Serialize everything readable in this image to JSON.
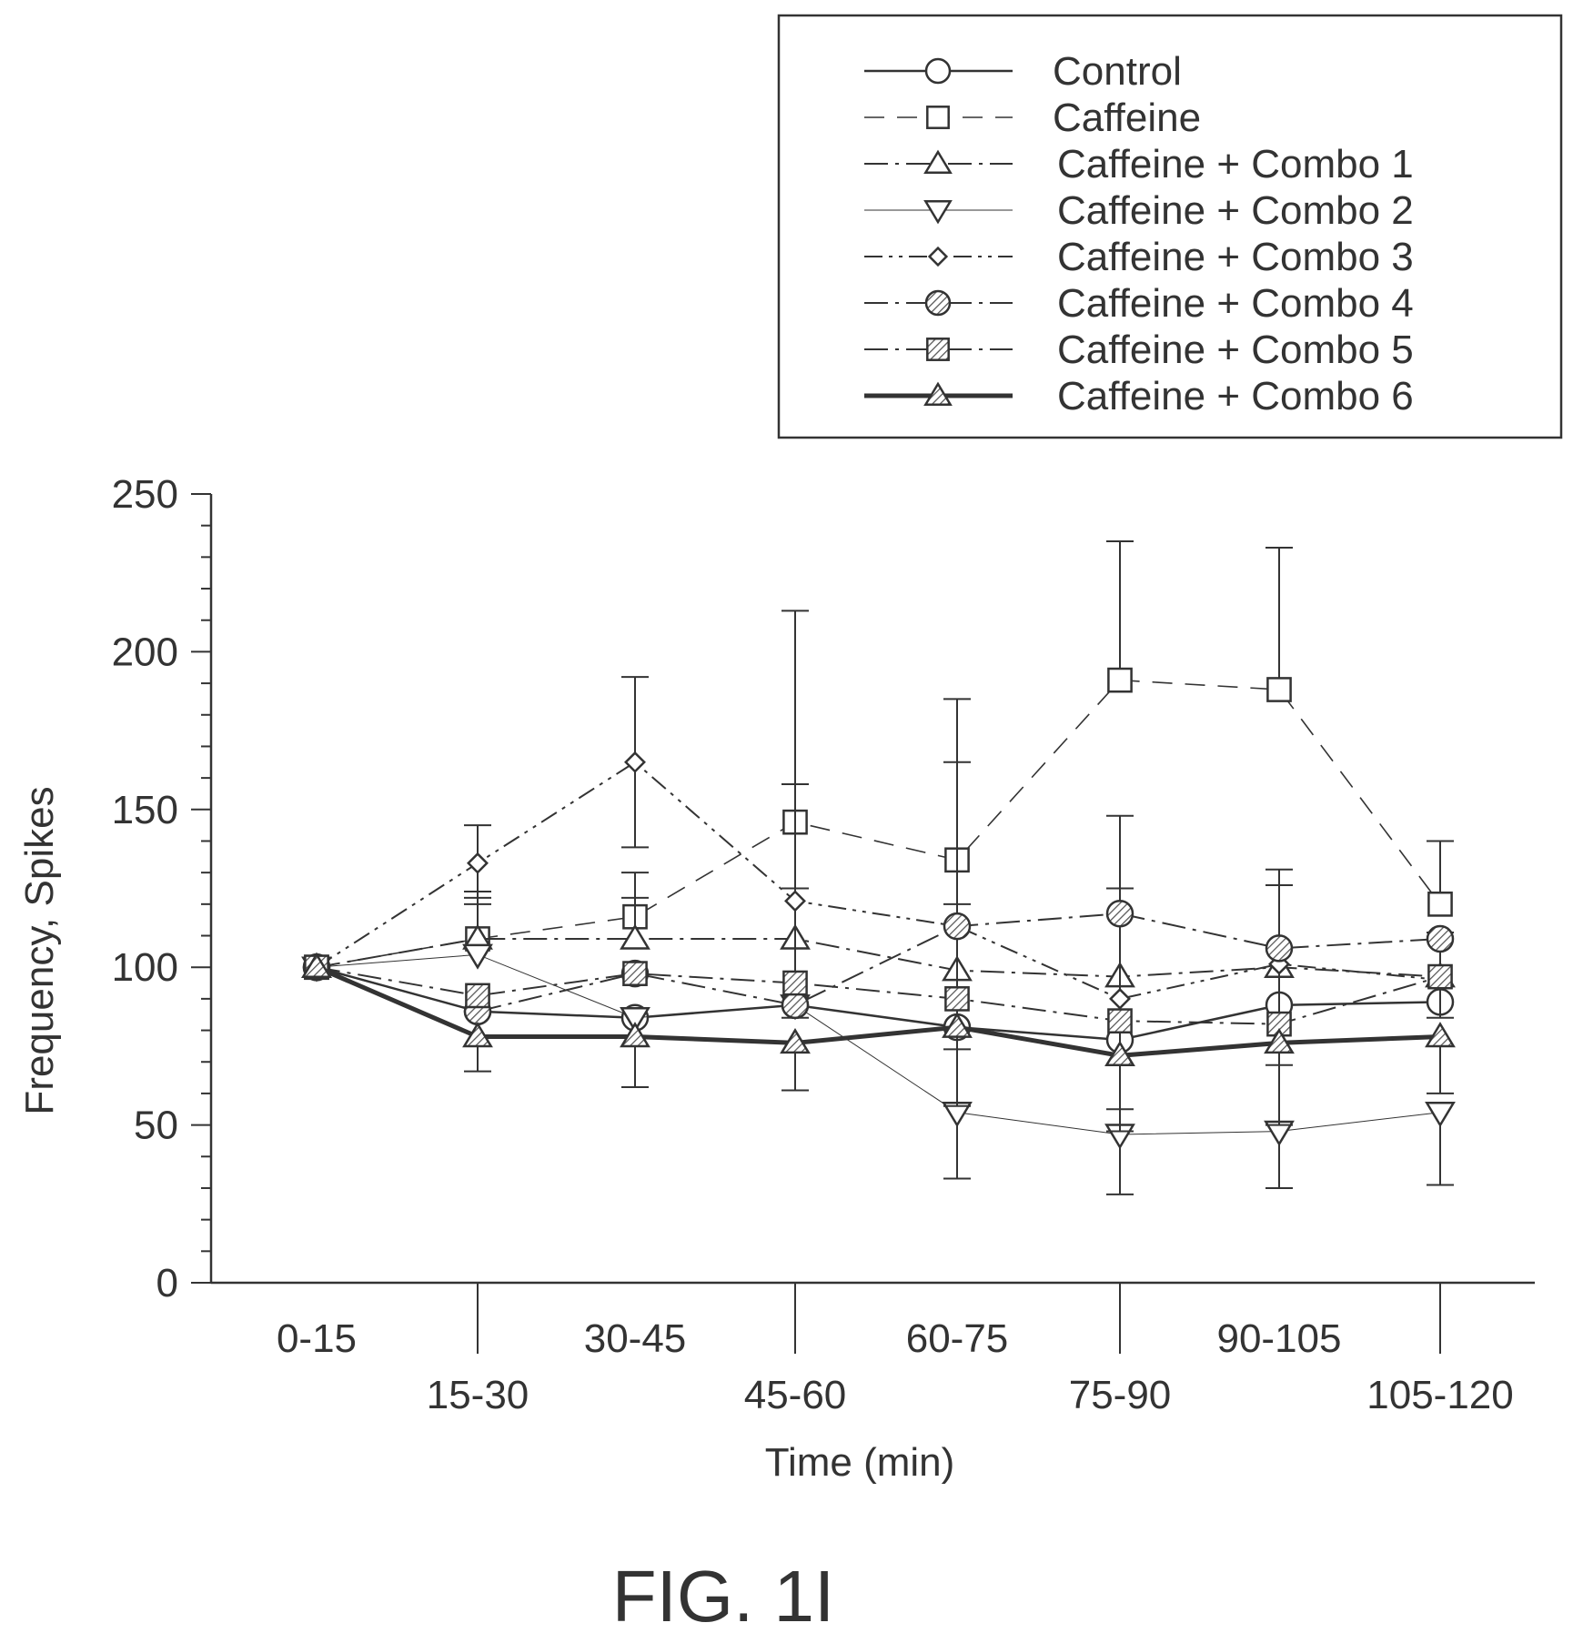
{
  "chart_data": {
    "type": "line",
    "xlabel": "Time (min)",
    "ylabel": "Frequency, Spikes",
    "ylim": [
      0,
      250
    ],
    "yticks": [
      0,
      50,
      100,
      150,
      200,
      250
    ],
    "categories": [
      "0-15",
      "15-30",
      "30-45",
      "45-60",
      "60-75",
      "75-90",
      "90-105",
      "105-120"
    ],
    "legend_position": "top-right",
    "grid": false,
    "series": [
      {
        "name": "Control",
        "marker": "circle",
        "fill": "white",
        "dash": "solid",
        "stroke_width": 2.5,
        "values": [
          100,
          86,
          84,
          88,
          81,
          77,
          88,
          89
        ],
        "err_hi": [
          null,
          null,
          null,
          null,
          null,
          null,
          null,
          null
        ]
      },
      {
        "name": "Caffeine",
        "marker": "square",
        "fill": "white",
        "dash": "long-dash",
        "stroke_width": 1.6,
        "values": [
          100,
          109,
          116,
          146,
          134,
          191,
          188,
          120
        ],
        "err_hi": [
          null,
          124,
          130,
          213,
          185,
          235,
          233,
          140
        ]
      },
      {
        "name": "Caffeine + Combo 1",
        "marker": "triangle-up",
        "fill": "white",
        "dash": "dash-dot",
        "stroke_width": 2,
        "values": [
          100,
          109,
          109,
          109,
          99,
          97,
          100,
          97
        ],
        "err_hi": [
          null,
          122,
          122,
          125,
          120,
          125,
          126,
          111
        ]
      },
      {
        "name": "Caffeine + Combo 2",
        "marker": "triangle-down",
        "fill": "white",
        "dash": "solid",
        "stroke_width": 1,
        "values": [
          100,
          104,
          84,
          88,
          54,
          47,
          48,
          54
        ],
        "err_hi": [
          null,
          null,
          null,
          null,
          null,
          null,
          null,
          null
        ],
        "err_lo": [
          null,
          null,
          null,
          null,
          33,
          28,
          30,
          31
        ]
      },
      {
        "name": "Caffeine + Combo 3",
        "marker": "diamond",
        "fill": "white",
        "dash": "dash-dot-dot",
        "stroke_width": 2,
        "values": [
          100,
          133,
          165,
          121,
          113,
          90,
          101,
          96
        ],
        "err_hi": [
          null,
          145,
          192,
          158,
          165,
          148,
          131,
          111
        ],
        "err_lo": [
          null,
          120,
          138,
          84,
          74,
          55,
          69,
          84
        ]
      },
      {
        "name": "Caffeine + Combo 4",
        "marker": "circle",
        "fill": "hatch",
        "dash": "dash-dot",
        "stroke_width": 2,
        "values": [
          100,
          86,
          98,
          88,
          113,
          117,
          106,
          109
        ],
        "err_hi": [
          null,
          null,
          null,
          null,
          null,
          null,
          null,
          null
        ]
      },
      {
        "name": "Caffeine + Combo 5",
        "marker": "square",
        "fill": "hatch",
        "dash": "dash-dot",
        "stroke_width": 2,
        "values": [
          100,
          91,
          98,
          95,
          90,
          83,
          82,
          97
        ],
        "err_hi": [
          null,
          null,
          null,
          null,
          null,
          null,
          null,
          null
        ]
      },
      {
        "name": "Caffeine + Combo 6",
        "marker": "triangle-up",
        "fill": "hatch",
        "dash": "solid",
        "stroke_width": 5,
        "values": [
          100,
          78,
          78,
          76,
          81,
          72,
          76,
          78
        ],
        "err_hi": [
          null,
          null,
          null,
          null,
          null,
          null,
          null,
          null
        ],
        "err_lo": [
          null,
          67,
          62,
          61,
          56,
          48,
          50,
          60
        ]
      }
    ]
  },
  "figure_label": "FIG. 1I"
}
